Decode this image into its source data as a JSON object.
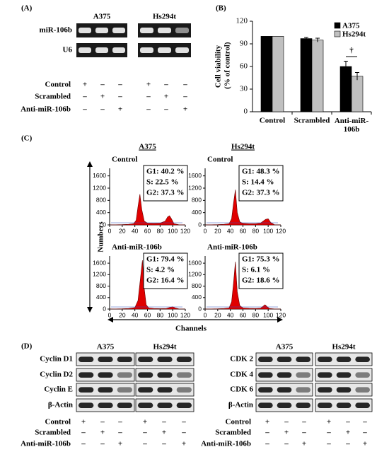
{
  "panel_a": {
    "label": "(A)",
    "groups": [
      "A375",
      "Hs294t"
    ],
    "rows": [
      "miR-106b",
      "U6"
    ],
    "conditions": [
      "Control",
      "Scrambled",
      "Anti-miR-106b"
    ],
    "signs": [
      [
        "+",
        "–",
        "–",
        "+",
        "–",
        "–"
      ],
      [
        "–",
        "+",
        "–",
        "–",
        "+",
        "–"
      ],
      [
        "–",
        "–",
        "+",
        "–",
        "–",
        "+"
      ]
    ]
  },
  "panel_b": {
    "label": "(B)"
  },
  "panel_c": {
    "label": "(C)",
    "y_label": "Numbers",
    "x_label": "Channels"
  },
  "chart_data": [
    {
      "type": "bar",
      "y_label": "Cell viability (% of control)",
      "categories": [
        "Control",
        "Scrambled",
        "Anti-miR-106b"
      ],
      "series": [
        {
          "name": "A375",
          "color": "#000000",
          "values": [
            100,
            97,
            60
          ],
          "errors": [
            0,
            1.5,
            7
          ]
        },
        {
          "name": "Hs294t",
          "color": "#c0c0c0",
          "values": [
            100,
            95,
            47
          ],
          "errors": [
            0,
            2.5,
            5
          ]
        }
      ],
      "ylim": [
        0,
        120
      ],
      "yticks": [
        0,
        30,
        60,
        90,
        120
      ],
      "annotation": "†"
    },
    {
      "type": "area",
      "group": "A375",
      "title": "Control",
      "stats": [
        "G1: 40.2 %",
        "S: 22.5 %",
        "G2: 37.3 %"
      ],
      "color": "#e00000",
      "x": [
        0,
        10,
        20,
        30,
        38,
        42,
        45,
        48,
        51,
        55,
        60,
        70,
        80,
        88,
        92,
        95,
        98,
        102,
        110,
        120
      ],
      "values": [
        0,
        5,
        10,
        20,
        40,
        150,
        600,
        1000,
        500,
        120,
        60,
        50,
        60,
        120,
        260,
        300,
        200,
        40,
        5,
        0
      ],
      "xlim": [
        0,
        120
      ],
      "ylim": [
        0,
        1800
      ],
      "xticks": [
        0,
        20,
        40,
        60,
        80,
        100,
        120
      ],
      "yticks": [
        0,
        400,
        800,
        1200,
        1600
      ]
    },
    {
      "type": "area",
      "group": "Hs294t",
      "title": "Control",
      "stats": [
        "G1: 48.3 %",
        "S: 14.4 %",
        "G2: 37.3 %"
      ],
      "color": "#e00000",
      "x": [
        0,
        10,
        20,
        30,
        38,
        42,
        45,
        48,
        51,
        55,
        60,
        70,
        80,
        88,
        92,
        96,
        100,
        104,
        110,
        120
      ],
      "values": [
        0,
        5,
        10,
        20,
        40,
        200,
        700,
        1150,
        400,
        100,
        50,
        40,
        40,
        60,
        120,
        180,
        200,
        80,
        5,
        0
      ],
      "xlim": [
        0,
        120
      ],
      "ylim": [
        0,
        1800
      ],
      "xticks": [
        0,
        20,
        40,
        60,
        80,
        100,
        120
      ],
      "yticks": [
        0,
        400,
        800,
        1200,
        1600
      ]
    },
    {
      "type": "area",
      "title": "Anti-miR-106b",
      "stats": [
        "G1: 79.4 %",
        "S: 4.2 %",
        "G2: 16.4 %"
      ],
      "color": "#e00000",
      "x": [
        0,
        10,
        20,
        30,
        40,
        45,
        48,
        52,
        55,
        58,
        62,
        70,
        80,
        90,
        96,
        100,
        104,
        110,
        120
      ],
      "values": [
        0,
        5,
        10,
        20,
        50,
        300,
        900,
        1700,
        700,
        150,
        40,
        20,
        15,
        20,
        60,
        80,
        40,
        5,
        0
      ],
      "xlim": [
        0,
        120
      ],
      "ylim": [
        0,
        1800
      ],
      "xticks": [
        0,
        20,
        40,
        60,
        80,
        100,
        120
      ],
      "yticks": [
        0,
        400,
        800,
        1200,
        1600
      ]
    },
    {
      "type": "area",
      "title": "Anti-miR-106b",
      "stats": [
        "G1: 75.3 %",
        "S: 6.1 %",
        "G2: 18.6 %"
      ],
      "color": "#e00000",
      "x": [
        0,
        10,
        20,
        30,
        38,
        42,
        45,
        48,
        51,
        55,
        60,
        70,
        80,
        88,
        92,
        95,
        98,
        102,
        110,
        120
      ],
      "values": [
        0,
        5,
        10,
        20,
        40,
        250,
        900,
        1650,
        600,
        120,
        40,
        25,
        20,
        30,
        100,
        150,
        90,
        20,
        5,
        0
      ],
      "xlim": [
        0,
        120
      ],
      "ylim": [
        0,
        1800
      ],
      "xticks": [
        0,
        20,
        40,
        60,
        80,
        100,
        120
      ],
      "yticks": [
        0,
        400,
        800,
        1200,
        1600
      ]
    }
  ],
  "panel_d": {
    "label": "(D)",
    "left": {
      "groups": [
        "A375",
        "Hs294t"
      ],
      "rows": [
        "Cyclin D1",
        "Cyclin D2",
        "Cyclin E",
        "β-Actin"
      ],
      "conditions": [
        "Control",
        "Scrambled",
        "Anti-miR-106b"
      ],
      "signs": [
        [
          "+",
          "–",
          "–",
          "+",
          "–",
          "–"
        ],
        [
          "–",
          "+",
          "–",
          "–",
          "+",
          "–"
        ],
        [
          "–",
          "–",
          "+",
          "–",
          "–",
          "+"
        ]
      ]
    },
    "right": {
      "groups": [
        "A375",
        "Hs294t"
      ],
      "rows": [
        "CDK 2",
        "CDK 4",
        "CDK 6",
        "β-Actin"
      ],
      "conditions": [
        "Control",
        "Scrambled",
        "Anti-miR-106b"
      ],
      "signs": [
        [
          "+",
          "–",
          "–",
          "+",
          "–",
          "–"
        ],
        [
          "–",
          "+",
          "–",
          "–",
          "+",
          "–"
        ],
        [
          "–",
          "–",
          "+",
          "–",
          "–",
          "+"
        ]
      ]
    }
  }
}
